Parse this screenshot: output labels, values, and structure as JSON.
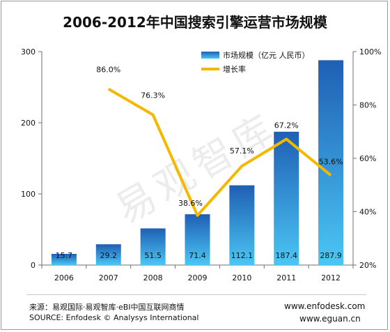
{
  "chart_data": {
    "type": "bar",
    "title": "2006-2012年中国搜索引擎运营市场规模",
    "categories": [
      "2006",
      "2007",
      "2008",
      "2009",
      "2010",
      "2011",
      "2012"
    ],
    "series": [
      {
        "name": "市场规模（亿元 人民币）",
        "axis": "left",
        "values": [
          15.7,
          29.2,
          51.5,
          71.4,
          112.1,
          187.4,
          287.9
        ],
        "labels": [
          "15.7",
          "29.2",
          "51.5",
          "71.4",
          "112.1",
          "187.4",
          "287.9"
        ],
        "color": "#2a7fd0"
      },
      {
        "name": "增长率",
        "type": "line",
        "axis": "right",
        "x": [
          "2007",
          "2008",
          "2009",
          "2010",
          "2011",
          "2012"
        ],
        "values": [
          86.0,
          76.3,
          38.6,
          57.1,
          67.2,
          53.6
        ],
        "labels": [
          "86.0%",
          "76.3%",
          "38.6%",
          "57.1%",
          "67.2%",
          "53.6%"
        ],
        "color": "#f5b800"
      }
    ],
    "ylim": [
      0,
      300
    ],
    "yticks": [
      "0",
      "100",
      "200",
      "300"
    ],
    "y2lim": [
      20,
      100
    ],
    "y2ticks": [
      "20%",
      "40%",
      "60%",
      "80%",
      "100%"
    ],
    "legend": "top-right",
    "grid": false
  },
  "watermark": "易观智库",
  "footer": {
    "source_cn": "来源：易观国际·易观智库·eBI中国互联网商情",
    "source_en": "SOURCE: Enfodesk © Analysys International",
    "url_1": "www.enfodesk.com",
    "url_2": "www.eguan.cn"
  }
}
